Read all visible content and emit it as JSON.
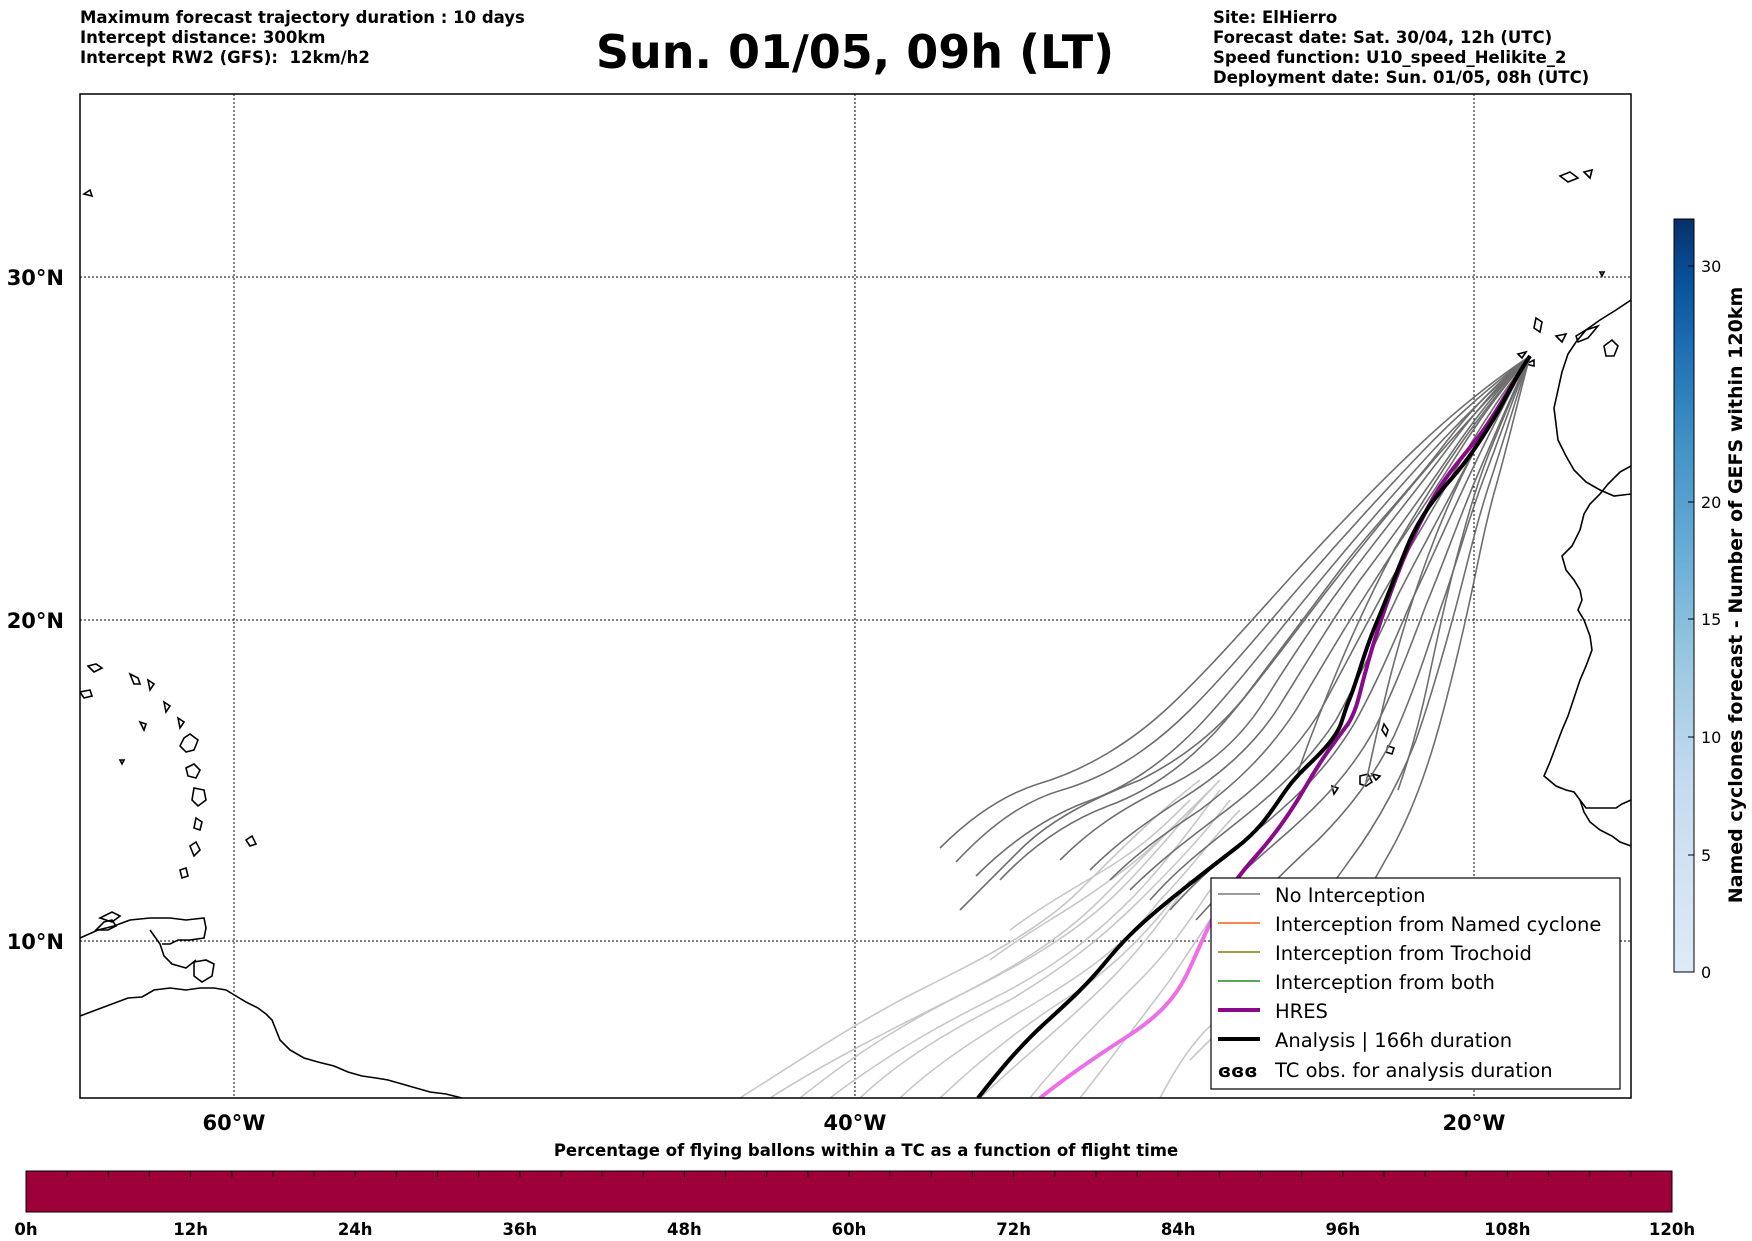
{
  "header": {
    "left_lines": [
      "Maximum forecast trajectory duration : 10 days",
      "Intercept distance: 300km",
      "Intercept RW2 (GFS):  12km/h2"
    ],
    "title": "Sun. 01/05, 09h (LT)",
    "right_lines": [
      "Site: ElHierro",
      "Forecast date: Sat. 30/04, 12h (UTC)",
      "Speed function: U10_speed_Helikite_2",
      "Deployment date: Sun. 01/05, 08h (UTC)"
    ]
  },
  "map": {
    "lon_labels": [
      "60°W",
      "40°W",
      "20°W"
    ],
    "lat_labels": [
      "30°N",
      "20°N",
      "10°N"
    ],
    "colors": {
      "coast": "#000000",
      "grid": "#000000",
      "ens_in_frame": "#6e6e6e",
      "ens_out_frame": "#c8c8c8",
      "hres": "#8b0a8b",
      "hres_light": "#ee6ee8",
      "analysis": "#000000"
    }
  },
  "legend": {
    "items": [
      {
        "label": "No Interception",
        "color": "#7a7a7a",
        "width": 1.5,
        "type": "line"
      },
      {
        "label": "Interception from Named cyclone",
        "color": "#ff5a14",
        "width": 1.5,
        "type": "line"
      },
      {
        "label": "Interception from Trochoid",
        "color": "#808000",
        "width": 1.5,
        "type": "line"
      },
      {
        "label": "Interception from both",
        "color": "#1e8c1e",
        "width": 1.5,
        "type": "line"
      },
      {
        "label": "HRES",
        "color": "#8b0a8b",
        "width": 4,
        "type": "line"
      },
      {
        "label": "Analysis | 166h duration",
        "color": "#000000",
        "width": 4,
        "type": "line"
      },
      {
        "label": "TC obs. for analysis duration",
        "color": "#000000",
        "type": "symbol",
        "symbol": "ἀἀἀ"
      }
    ]
  },
  "colorbar": {
    "title": "Named cyclones forecast - Number of GEFS within 120km",
    "ticks": [
      "0",
      "5",
      "10",
      "15",
      "20",
      "30"
    ],
    "tick_values": [
      0,
      5,
      10,
      15,
      20,
      30
    ],
    "range": [
      0,
      32
    ],
    "colors": [
      "#dce9f6",
      "#c6dbef",
      "#9ecae1",
      "#6baed6",
      "#4292c6",
      "#2171b5",
      "#08519c",
      "#08306b"
    ]
  },
  "percentage_bar": {
    "title": "Percentage of flying ballons within a TC as a function of flight time",
    "ticks": [
      "0h",
      "12h",
      "24h",
      "36h",
      "48h",
      "60h",
      "72h",
      "84h",
      "96h",
      "108h",
      "120h"
    ],
    "color": "#9e003a"
  }
}
